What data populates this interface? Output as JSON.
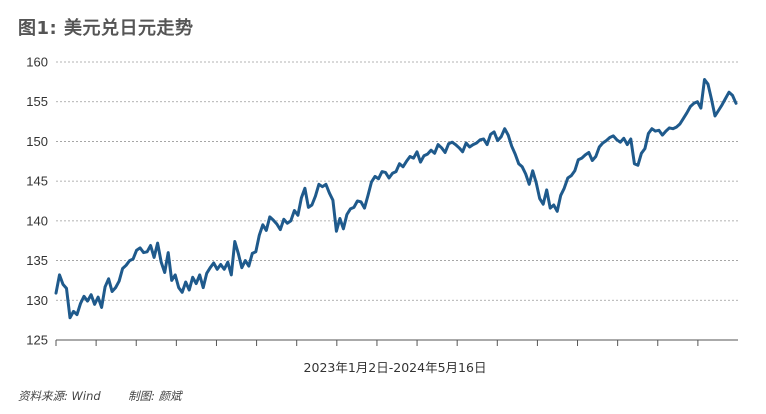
{
  "title": "图1: 美元兑日元走势",
  "source": "资料来源: Wind",
  "author": "制图: 颜斌",
  "chart_data": {
    "type": "line",
    "title": "图1: 美元兑日元走势",
    "xlabel": "2023年1月2日-2024年5月16日",
    "ylabel": "",
    "ylim": [
      125,
      160
    ],
    "yticks": [
      125,
      130,
      135,
      140,
      145,
      150,
      155,
      160
    ],
    "grid": "horizontal dashed",
    "line_color": "#1f5a8c",
    "series": [
      {
        "name": "美元兑日元",
        "x_range": [
          "2023-01-02",
          "2024-05-16"
        ],
        "values": [
          130.9,
          133.2,
          132.0,
          131.5,
          127.8,
          128.6,
          128.2,
          129.6,
          130.5,
          129.9,
          130.7,
          129.5,
          130.4,
          129.1,
          131.7,
          132.7,
          131.1,
          131.6,
          132.4,
          134.0,
          134.4,
          135.0,
          135.2,
          136.3,
          136.6,
          136.0,
          136.1,
          136.9,
          135.4,
          137.2,
          134.8,
          133.5,
          136.0,
          132.5,
          133.2,
          131.6,
          131.0,
          132.3,
          131.3,
          132.9,
          132.1,
          133.2,
          131.6,
          133.4,
          134.1,
          134.7,
          133.9,
          134.5,
          133.9,
          134.8,
          133.2,
          137.4,
          135.9,
          134.1,
          135.0,
          134.3,
          135.9,
          136.1,
          138.2,
          139.5,
          138.8,
          140.5,
          140.1,
          139.6,
          138.9,
          140.2,
          139.7,
          140.0,
          141.3,
          140.7,
          142.9,
          144.1,
          141.7,
          142.0,
          143.1,
          144.6,
          144.3,
          144.6,
          143.5,
          142.6,
          138.7,
          140.3,
          139.0,
          140.8,
          141.5,
          141.7,
          142.5,
          142.4,
          141.6,
          143.2,
          144.9,
          145.6,
          145.3,
          146.2,
          146.1,
          145.4,
          146.0,
          146.2,
          147.2,
          146.8,
          147.5,
          148.1,
          147.9,
          148.7,
          147.4,
          148.2,
          148.4,
          148.9,
          148.5,
          149.6,
          149.2,
          148.6,
          149.7,
          149.9,
          149.6,
          149.2,
          148.7,
          149.8,
          149.3,
          149.6,
          149.8,
          150.2,
          150.3,
          149.6,
          150.9,
          151.2,
          150.1,
          150.6,
          151.6,
          150.8,
          149.4,
          148.4,
          147.2,
          146.8,
          145.9,
          144.6,
          146.3,
          144.8,
          142.8,
          142.1,
          143.9,
          141.6,
          142.0,
          141.2,
          143.2,
          144.1,
          145.4,
          145.7,
          146.3,
          147.7,
          147.9,
          148.3,
          148.6,
          147.6,
          148.1,
          149.3,
          149.8,
          150.1,
          150.5,
          150.7,
          150.2,
          149.9,
          150.4,
          149.6,
          150.3,
          147.2,
          147.0,
          148.5,
          149.1,
          151.0,
          151.6,
          151.3,
          151.4,
          150.8,
          151.3,
          151.7,
          151.6,
          151.8,
          152.2,
          152.9,
          153.6,
          154.4,
          154.8,
          155.0,
          154.2,
          157.8,
          157.2,
          155.3,
          153.2,
          153.9,
          154.6,
          155.4,
          156.2,
          155.8,
          154.8
        ]
      }
    ]
  }
}
